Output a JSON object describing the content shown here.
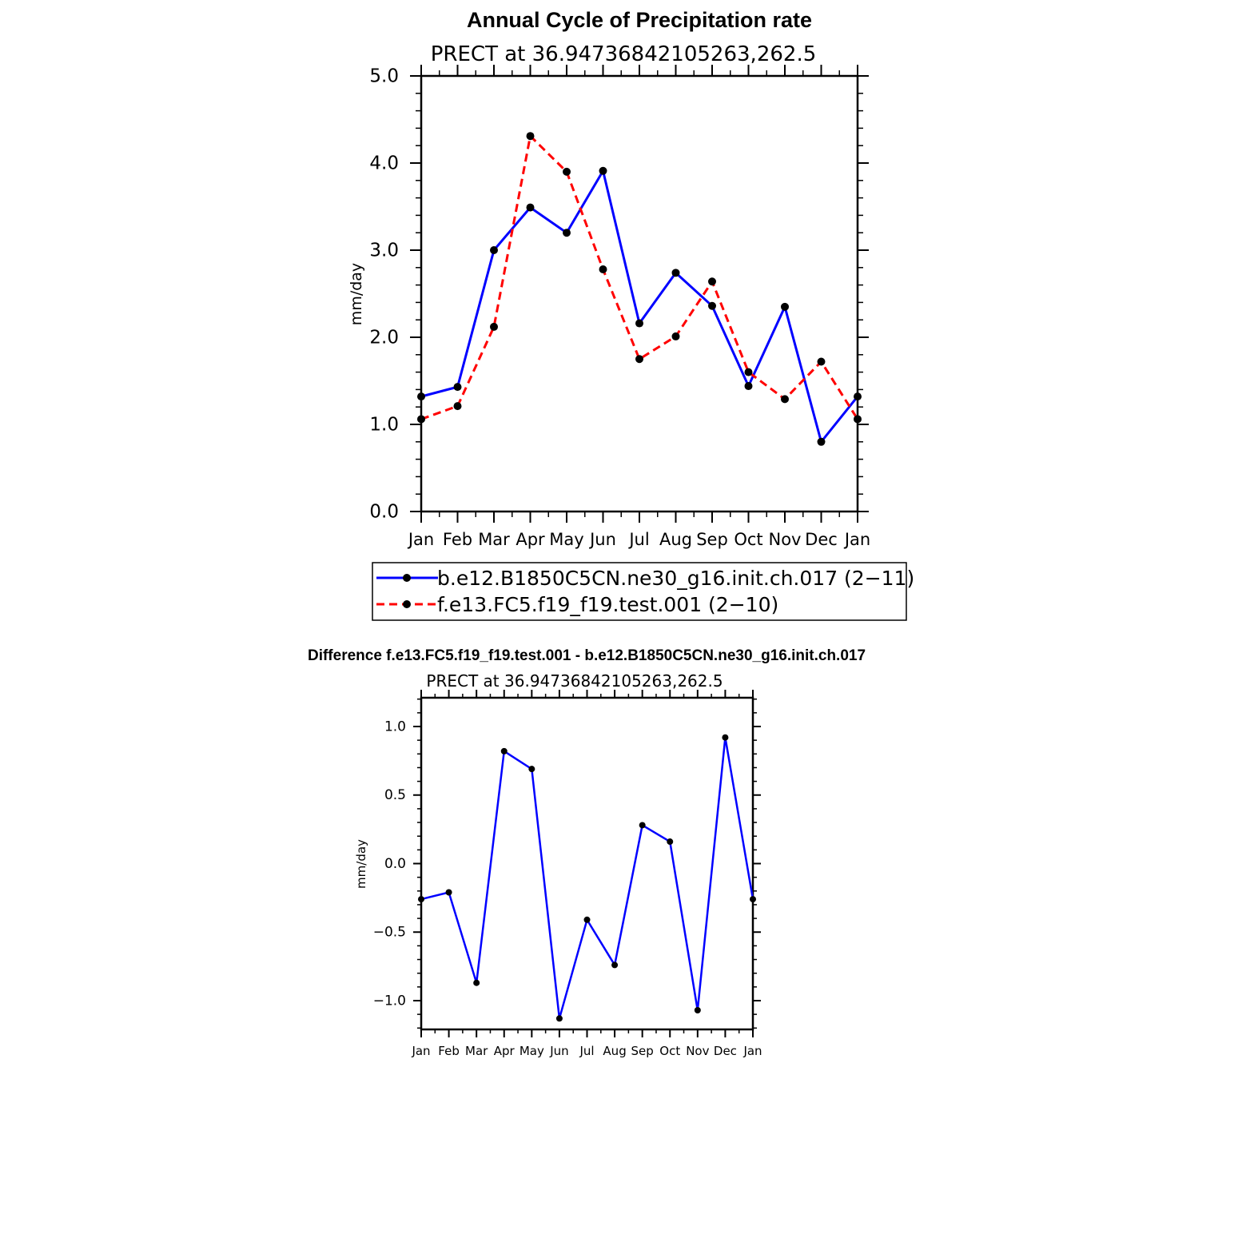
{
  "chart_data": [
    {
      "type": "line",
      "title": "Annual Cycle of Precipitation rate",
      "subtitle": "PRECT at 36.94736842105263,262.5",
      "ylabel": "mm/day",
      "xlabel": "",
      "categories": [
        "Jan",
        "Feb",
        "Mar",
        "Apr",
        "May",
        "Jun",
        "Jul",
        "Aug",
        "Sep",
        "Oct",
        "Nov",
        "Dec",
        "Jan"
      ],
      "ylim": [
        0,
        5
      ],
      "yticks": [
        0,
        1,
        2,
        3,
        4,
        5
      ],
      "ytick_labels": [
        "0.0",
        "1.0",
        "2.0",
        "3.0",
        "4.0",
        "5.0"
      ],
      "legend_position": "bottom",
      "series": [
        {
          "name": "b.e12.B1850C5CN.ne30_g16.init.ch.017 (2−11)",
          "color": "#0000ff",
          "style": "solid",
          "values": [
            1.32,
            1.43,
            3.0,
            3.49,
            3.2,
            3.91,
            2.16,
            2.74,
            2.36,
            1.44,
            2.35,
            0.8,
            1.32
          ]
        },
        {
          "name": "f.e13.FC5.f19_f19.test.001 (2−10)",
          "color": "#ff0000",
          "style": "dashed",
          "values": [
            1.06,
            1.21,
            2.12,
            4.31,
            3.9,
            2.78,
            1.75,
            2.01,
            2.64,
            1.6,
            1.29,
            1.72,
            1.06
          ]
        }
      ]
    },
    {
      "type": "line",
      "title": "Difference f.e13.FC5.f19_f19.test.001 - b.e12.B1850C5CN.ne30_g16.init.ch.017",
      "subtitle": "PRECT at 36.94736842105263,262.5",
      "ylabel": "mm/day",
      "xlabel": "",
      "categories": [
        "Jan",
        "Feb",
        "Mar",
        "Apr",
        "May",
        "Jun",
        "Jul",
        "Aug",
        "Sep",
        "Oct",
        "Nov",
        "Dec",
        "Jan"
      ],
      "ylim": [
        -1.21,
        1.21
      ],
      "yticks": [
        -1.0,
        -0.5,
        0.0,
        0.5,
        1.0
      ],
      "ytick_labels": [
        "−1.0",
        "−0.5",
        "0.0",
        "0.5",
        "1.0"
      ],
      "series": [
        {
          "color": "#0000ff",
          "style": "solid",
          "values": [
            -0.26,
            -0.21,
            -0.87,
            0.82,
            0.69,
            -1.13,
            -0.41,
            -0.74,
            0.28,
            0.16,
            -1.07,
            0.92,
            -0.26
          ]
        }
      ]
    }
  ]
}
